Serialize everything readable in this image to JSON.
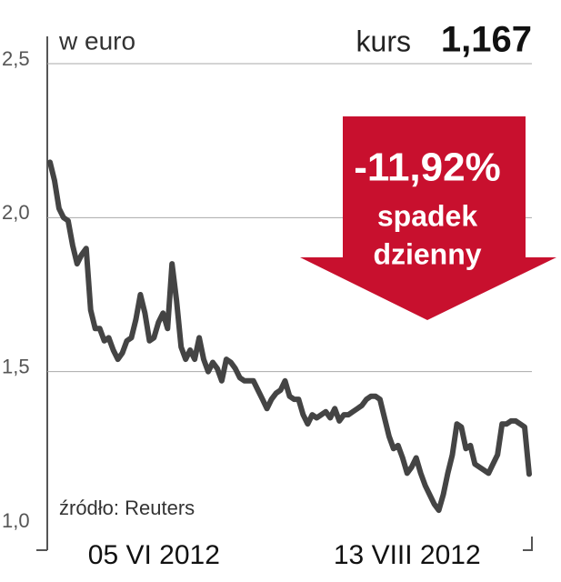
{
  "chart_data": {
    "type": "line",
    "unit_label": "w euro",
    "price_label": "kurs",
    "price": "1,167",
    "change": "-11,92%",
    "change_text": [
      "spadek",
      "dzienny"
    ],
    "source": "źródło: Reuters",
    "ylim": [
      1.0,
      2.5
    ],
    "yticks": [
      {
        "value": 1.0,
        "label": "1,0"
      },
      {
        "value": 1.5,
        "label": "1,5"
      },
      {
        "value": 2.0,
        "label": "2,0"
      },
      {
        "value": 2.5,
        "label": "2,5"
      }
    ],
    "grid": true,
    "series": [
      {
        "color": "#444444",
        "values": [
          2.18,
          2.12,
          2.03,
          2.0,
          1.99,
          1.91,
          1.85,
          1.88,
          1.9,
          1.7,
          1.64,
          1.64,
          1.6,
          1.61,
          1.57,
          1.54,
          1.56,
          1.6,
          1.61,
          1.67,
          1.75,
          1.69,
          1.6,
          1.61,
          1.66,
          1.69,
          1.64,
          1.85,
          1.73,
          1.58,
          1.54,
          1.57,
          1.54,
          1.61,
          1.54,
          1.5,
          1.53,
          1.51,
          1.47,
          1.54,
          1.53,
          1.51,
          1.48,
          1.47,
          1.47,
          1.47,
          1.44,
          1.41,
          1.38,
          1.41,
          1.43,
          1.44,
          1.47,
          1.42,
          1.41,
          1.41,
          1.36,
          1.33,
          1.36,
          1.35,
          1.36,
          1.37,
          1.35,
          1.38,
          1.34,
          1.36,
          1.36,
          1.37,
          1.38,
          1.39,
          1.41,
          1.42,
          1.42,
          1.41,
          1.35,
          1.29,
          1.25,
          1.26,
          1.22,
          1.17,
          1.19,
          1.22,
          1.17,
          1.13,
          1.1,
          1.07,
          1.05,
          1.1,
          1.17,
          1.23,
          1.33,
          1.32,
          1.25,
          1.26,
          1.2,
          1.19,
          1.18,
          1.17,
          1.2,
          1.23,
          1.33,
          1.33,
          1.34,
          1.34,
          1.33,
          1.32,
          1.167
        ]
      }
    ],
    "categories": [
      null,
      null,
      null,
      null,
      null,
      null,
      null,
      null,
      null,
      null,
      null,
      null,
      null,
      null,
      null,
      null,
      null,
      null,
      null,
      null,
      null,
      null,
      null,
      "05 VI 2012",
      null,
      null,
      null,
      null,
      null,
      null,
      null,
      null,
      null,
      null,
      null,
      null,
      null,
      null,
      null,
      null,
      null,
      null,
      null,
      null,
      null,
      null,
      null,
      null,
      null,
      null,
      null,
      null,
      null,
      null,
      null,
      null,
      null,
      null,
      null,
      null,
      null,
      null,
      null,
      null,
      null,
      null,
      null,
      null,
      null,
      null,
      null,
      null,
      null,
      null,
      null,
      null,
      null,
      null,
      null,
      "13 VIII 2012",
      null,
      null,
      null,
      null,
      null,
      null,
      null,
      null,
      null,
      null,
      null,
      null,
      null,
      null,
      null,
      null,
      null,
      null,
      null,
      null,
      null,
      null,
      null,
      null,
      null,
      null,
      null
    ]
  }
}
